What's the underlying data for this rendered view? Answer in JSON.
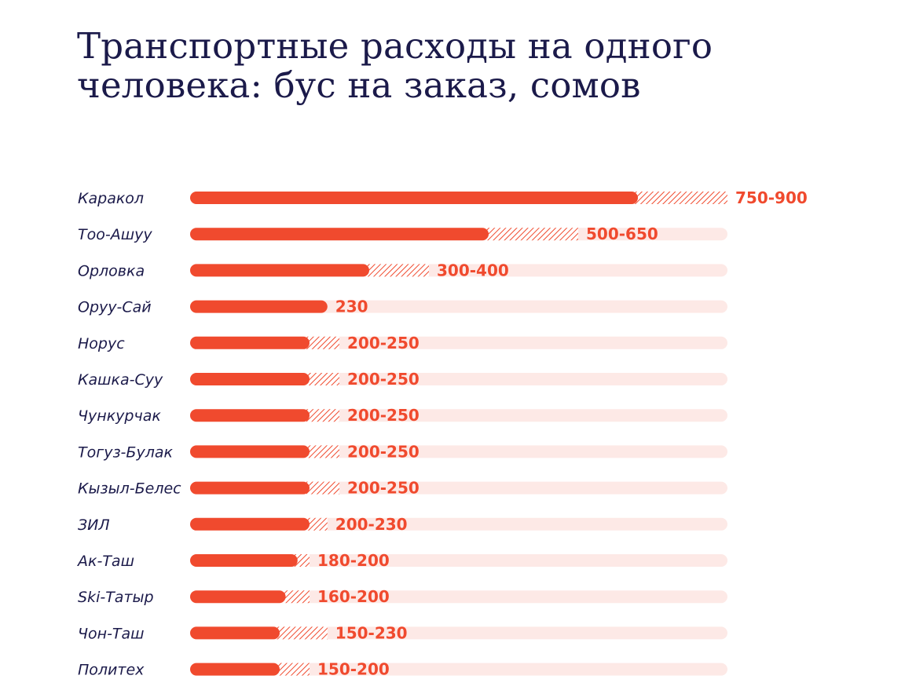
{
  "title_lines": [
    "Транспортные расходы на одного",
    "человека: бус на заказ, сомов"
  ],
  "colors": {
    "bar": "#f04a2e",
    "track": "#fde9e6",
    "title": "#1b1a4a",
    "label": "#1b1a4a"
  },
  "chart_data": {
    "type": "bar",
    "orientation": "horizontal",
    "title": "Транспортные расходы на одного человека: бус на заказ, сомов",
    "xlim": [
      0,
      900
    ],
    "grid": false,
    "categories": [
      "Каракол",
      "Тоо-Ашуу",
      "Орловка",
      "Оруу-Сай",
      "Норус",
      "Кашка-Суу",
      "Чункурчак",
      "Тогуз-Булак",
      "Кызыл-Белес",
      "ЗИЛ",
      "Ак-Таш",
      "Ski-Татыр",
      "Чон-Таш",
      "Политех"
    ],
    "series": [
      {
        "values": [
          750,
          500,
          300,
          230,
          200,
          200,
          200,
          200,
          200,
          200,
          180,
          160,
          150,
          150
        ]
      },
      {
        "values": [
          900,
          650,
          400,
          230,
          250,
          250,
          250,
          250,
          250,
          230,
          200,
          200,
          230,
          200
        ]
      }
    ],
    "value_labels": [
      "750-900",
      "500-650",
      "300-400",
      "230",
      "200-250",
      "200-250",
      "200-250",
      "200-250",
      "200-250",
      "200-230",
      "180-200",
      "160-200",
      "150-230",
      "150-200"
    ]
  }
}
